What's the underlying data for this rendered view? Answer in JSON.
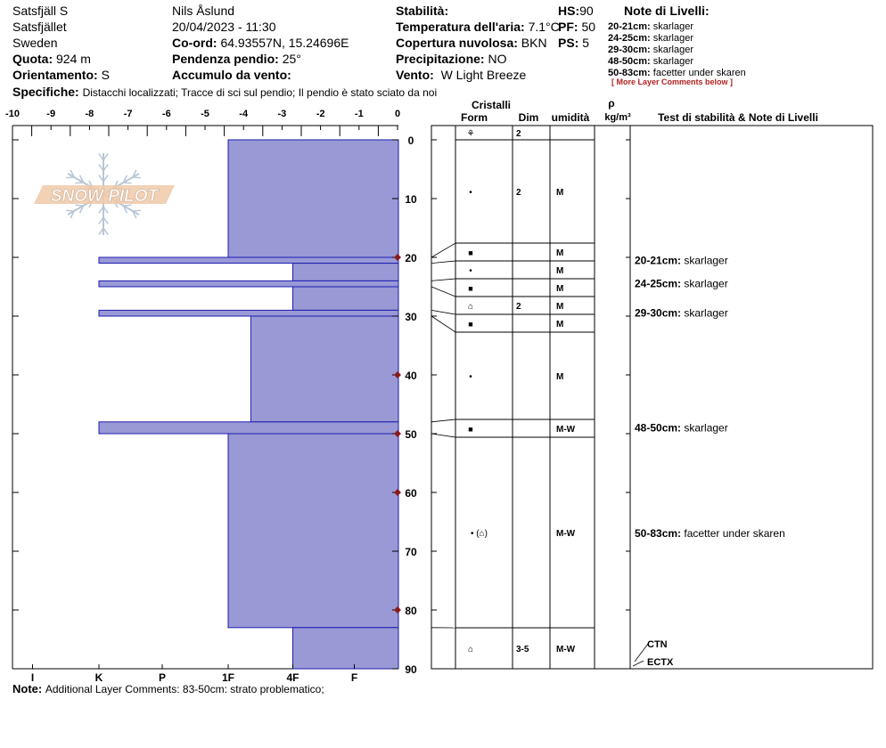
{
  "header": {
    "col1": {
      "location": "Satsfjäll S",
      "area": "Satsfjället",
      "country": "Sweden",
      "elevation_label": "Quota:",
      "elevation_value": "924 m",
      "aspect_label": "Orientamento:",
      "aspect_value": "S"
    },
    "col2": {
      "observer": "Nils Åslund",
      "datetime": "20/04/2023 - 11:30",
      "coords_label": "Co-ord:",
      "coords_value": "64.93557N, 15.24696E",
      "slope_label": "Pendenza pendio:",
      "slope_value": "25°",
      "wind_loading_label": "Accumulo da vento:",
      "wind_loading_value": ""
    },
    "col3": {
      "stability_label": "Stabilità:",
      "stability_value": "",
      "air_temp_label": "Temperatura dell'aria:",
      "air_temp_value": "7.1°C",
      "cloud_label": "Copertura nuvolosa:",
      "cloud_value": "BKN",
      "precip_label": "Precipitazione:",
      "precip_value": "NO",
      "wind_label": "Vento:",
      "wind_value": "W Light Breeze"
    },
    "col4": {
      "hs_label": "HS:",
      "hs_value": "90",
      "pf_label": "PF:",
      "pf_value": "50",
      "ps_label": "PS:",
      "ps_value": "5"
    },
    "specifics_label": "Specifiche:",
    "specifics_value": "Distacchi localizzati;  Tracce di sci sul pendio;  Il pendio è stato sciato da noi"
  },
  "layer_notes": {
    "title": "Note di Livelli:",
    "items": [
      {
        "range": "20-21cm:",
        "text": "skarlager"
      },
      {
        "range": "24-25cm:",
        "text": "skarlager"
      },
      {
        "range": "29-30cm:",
        "text": "skarlager"
      },
      {
        "range": "48-50cm:",
        "text": "skarlager"
      },
      {
        "range": "50-83cm:",
        "text": "facetter under skaren"
      }
    ],
    "more": "[ More Layer Comments below ]"
  },
  "footer": {
    "note_label": "Note:",
    "note_value": "Additional Layer Comments: 83-50cm: strato problematico;"
  },
  "logo_text": "SNOW PILOT",
  "columns": {
    "crystals": "Cristalli",
    "form": "Form",
    "dim": "Dim",
    "moisture": "umidità",
    "rho": "ρ",
    "density_unit": "kg/m³",
    "tests": "Test di stabilità & Note di Livelli"
  },
  "colors": {
    "hardness_fill": "#9999d6",
    "hardness_stroke": "#1c1cb0",
    "temp_marker": "#8b1a1a"
  },
  "chart_data": {
    "type": "bar",
    "temp_axis": {
      "ticks": [
        "-10",
        "-9",
        "-8",
        "-7",
        "-6",
        "-5",
        "-4",
        "-3",
        "-2",
        "-1",
        "0"
      ],
      "range": [
        -10,
        0
      ]
    },
    "depth_axis": {
      "ticks": [
        "0",
        "10",
        "20",
        "30",
        "40",
        "50",
        "60",
        "70",
        "80",
        "90"
      ],
      "range": [
        0,
        90
      ]
    },
    "hardness_axis": {
      "ticks": [
        "I",
        "K",
        "P",
        "1F",
        "4F",
        "F"
      ]
    },
    "temperature_points": [
      {
        "depth": 20,
        "temp": 0
      },
      {
        "depth": 40,
        "temp": 0
      },
      {
        "depth": 50,
        "temp": 0
      },
      {
        "depth": 60,
        "temp": 0
      },
      {
        "depth": 80,
        "temp": 0
      }
    ],
    "layers": [
      {
        "top": 0,
        "bottom": 20,
        "hardness_level": 3.0,
        "form": "⚘",
        "dim": "2",
        "moisture": ""
      },
      {
        "top": 0,
        "bottom": 20,
        "hardness_level": 3.0,
        "form": "•",
        "dim": "2",
        "moisture": "M"
      },
      {
        "top": 20,
        "bottom": 21,
        "hardness_level": 1.0,
        "form": "■",
        "dim": "",
        "moisture": "M"
      },
      {
        "top": 21,
        "bottom": 24,
        "hardness_level": 4.0,
        "form": "•",
        "dim": "",
        "moisture": "M"
      },
      {
        "top": 24,
        "bottom": 25,
        "hardness_level": 1.0,
        "form": "■",
        "dim": "",
        "moisture": "M"
      },
      {
        "top": 25,
        "bottom": 29,
        "hardness_level": 4.0,
        "form": "⌂",
        "dim": "2",
        "moisture": "M"
      },
      {
        "top": 29,
        "bottom": 30,
        "hardness_level": 1.0,
        "form": "■",
        "dim": "",
        "moisture": "M"
      },
      {
        "top": 30,
        "bottom": 48,
        "hardness_level": 3.35,
        "form": "•",
        "dim": "",
        "moisture": "M"
      },
      {
        "top": 48,
        "bottom": 50,
        "hardness_level": 1.0,
        "form": "■",
        "dim": "",
        "moisture": "M-W"
      },
      {
        "top": 50,
        "bottom": 83,
        "hardness_level": 3.0,
        "form": "• (⌂)",
        "dim": "",
        "moisture": "M-W"
      },
      {
        "top": 83,
        "bottom": 90,
        "hardness_level": 4.0,
        "form": "⌂",
        "dim": "3-5",
        "moisture": "M-W"
      }
    ],
    "stability_tests": [
      "CTN",
      "ECTX"
    ]
  }
}
